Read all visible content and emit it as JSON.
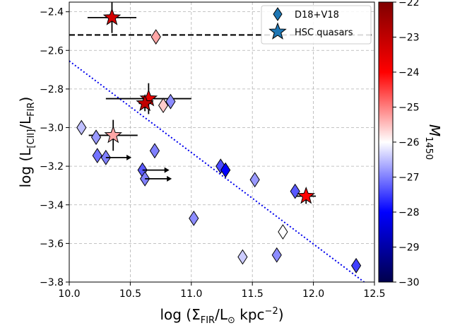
{
  "chart_data": {
    "type": "scatter",
    "xlabel": {
      "pre": "log (Σ",
      "sub": "FIR",
      "mid": "/L",
      "sub2": "⊙",
      "post": " kpc",
      "sup": "−2",
      "end": ")"
    },
    "ylabel": {
      "pre": "log (L",
      "sub": "[CII]",
      "mid": "/L",
      "sub2": "FIR",
      "end": ")"
    },
    "xlim": [
      10.0,
      12.5
    ],
    "ylim": [
      -3.8,
      -2.35
    ],
    "xticks": [
      {
        "v": 10.0,
        "label": "10.0"
      },
      {
        "v": 10.5,
        "label": "10.5"
      },
      {
        "v": 11.0,
        "label": "11.0"
      },
      {
        "v": 11.5,
        "label": "11.5"
      },
      {
        "v": 12.0,
        "label": "12.0"
      },
      {
        "v": 12.5,
        "label": "12.5"
      }
    ],
    "yticks": [
      {
        "v": -2.4,
        "label": "−2.4"
      },
      {
        "v": -2.6,
        "label": "−2.6"
      },
      {
        "v": -2.8,
        "label": "−2.8"
      },
      {
        "v": -3.0,
        "label": "−3.0"
      },
      {
        "v": -3.2,
        "label": "−3.2"
      },
      {
        "v": -3.4,
        "label": "−3.4"
      },
      {
        "v": -3.6,
        "label": "−3.6"
      },
      {
        "v": -3.8,
        "label": "−3.8"
      }
    ],
    "grid": true,
    "legend_position": "top-right",
    "legend": [
      {
        "label": "D18+V18",
        "marker": "diamond",
        "color": "#1f77b4"
      },
      {
        "label": "HSC quasars",
        "marker": "star",
        "color": "#1f77b4"
      }
    ],
    "hline": {
      "y": -2.52,
      "style": "dashed",
      "color": "#000000"
    },
    "fit_line": {
      "x": [
        10.0,
        12.5
      ],
      "y": [
        -2.655,
        -3.84
      ],
      "style": "dotted",
      "color": "#0000ee"
    },
    "colorbar": {
      "label_pre": "M",
      "label_sub": "1450",
      "range": [
        -30,
        -22
      ],
      "ticks": [
        {
          "v": -22,
          "label": "−22"
        },
        {
          "v": -23,
          "label": "−23"
        },
        {
          "v": -24,
          "label": "−24"
        },
        {
          "v": -25,
          "label": "−25"
        },
        {
          "v": -26,
          "label": "−26"
        },
        {
          "v": -27,
          "label": "−27"
        },
        {
          "v": -28,
          "label": "−28"
        },
        {
          "v": -29,
          "label": "−29"
        },
        {
          "v": -30,
          "label": "−30"
        }
      ],
      "colormap": "seismic_r"
    },
    "series": [
      {
        "name": "D18+V18",
        "marker": "diamond",
        "points": [
          {
            "x": 10.71,
            "y": -2.53,
            "m": -25.3
          },
          {
            "x": 10.77,
            "y": -2.885,
            "m": -25.6
          },
          {
            "x": 10.83,
            "y": -2.865,
            "m": -26.9
          },
          {
            "x": 10.1,
            "y": -3.0,
            "m": -26.5
          },
          {
            "x": 10.22,
            "y": -3.05,
            "m": -26.8
          },
          {
            "x": 10.23,
            "y": -3.145,
            "m": -27.1
          },
          {
            "x": 10.3,
            "y": -3.155,
            "m": -27.0
          },
          {
            "x": 10.7,
            "y": -3.12,
            "m": -27.0
          },
          {
            "x": 10.6,
            "y": -3.22,
            "m": -27.3
          },
          {
            "x": 10.62,
            "y": -3.265,
            "m": -27.0
          },
          {
            "x": 11.24,
            "y": -3.2,
            "m": -27.4
          },
          {
            "x": 11.28,
            "y": -3.22,
            "m": -28.0
          },
          {
            "x": 11.52,
            "y": -3.27,
            "m": -26.8
          },
          {
            "x": 11.85,
            "y": -3.33,
            "m": -27.3
          },
          {
            "x": 11.02,
            "y": -3.47,
            "m": -26.9
          },
          {
            "x": 11.42,
            "y": -3.67,
            "m": -26.4
          },
          {
            "x": 11.7,
            "y": -3.66,
            "m": -26.9
          },
          {
            "x": 11.75,
            "y": -3.54,
            "m": -26.0
          },
          {
            "x": 12.35,
            "y": -3.715,
            "m": -27.5
          }
        ],
        "lower_limits_x": [
          {
            "x": 10.3,
            "y": -3.155,
            "to": 10.51
          },
          {
            "x": 10.6,
            "y": -3.22,
            "to": 10.82
          },
          {
            "x": 10.62,
            "y": -3.265,
            "to": 10.84
          }
        ]
      },
      {
        "name": "HSC quasars",
        "marker": "star",
        "points": [
          {
            "x": 10.35,
            "y": -2.43,
            "m": -23.3,
            "xerr": 0.2,
            "yerr": 0.08
          },
          {
            "x": 10.65,
            "y": -2.85,
            "m": -23.6,
            "xerr": 0.35,
            "yerr": 0.08
          },
          {
            "x": 10.62,
            "y": -2.875,
            "m": -23.0,
            "xerr": 0.05,
            "yerr": 0.04
          },
          {
            "x": 10.36,
            "y": -3.04,
            "m": -25.3,
            "xerr": 0.2,
            "yerr": 0.08
          },
          {
            "x": 11.94,
            "y": -3.355,
            "m": -24.0,
            "xerr": 0.08,
            "yerr": 0.04
          }
        ]
      }
    ]
  }
}
